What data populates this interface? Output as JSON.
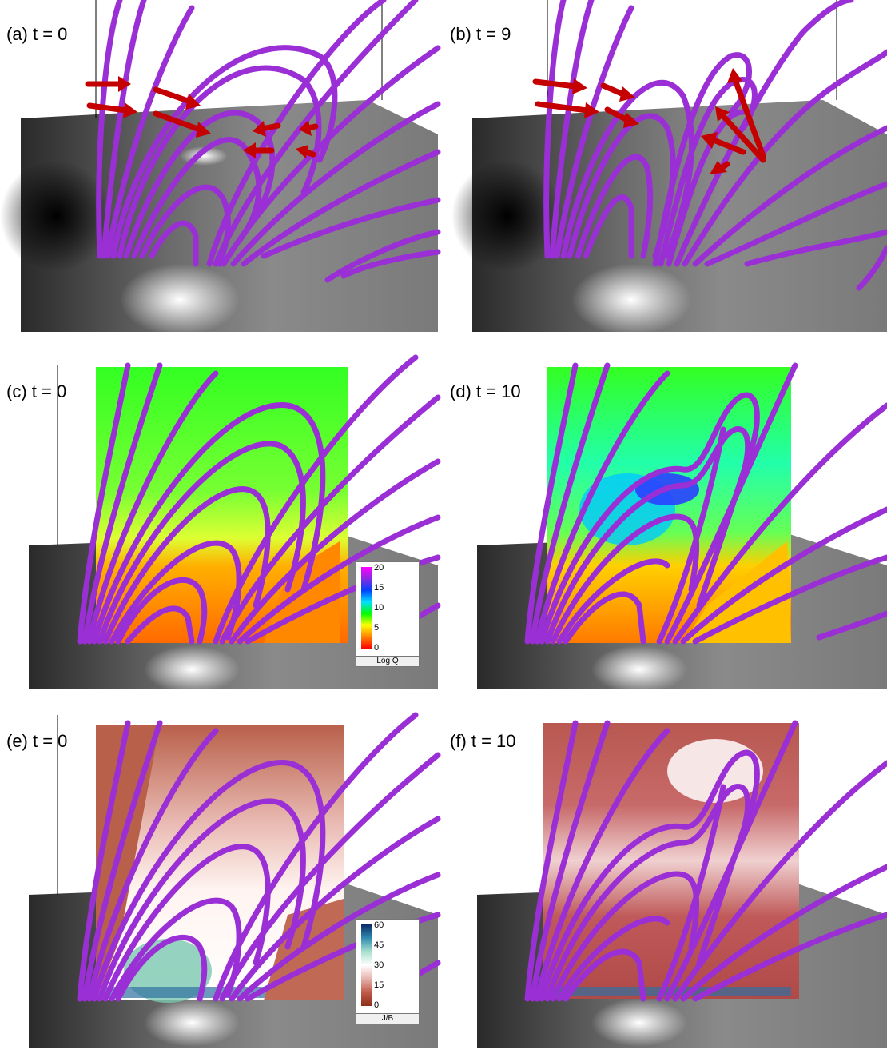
{
  "panels": [
    {
      "label": "(a) t = 0"
    },
    {
      "label": "(b) t = 9"
    },
    {
      "label": "(c) t = 0"
    },
    {
      "label": "(d) t = 10"
    },
    {
      "label": "(e) t = 0"
    },
    {
      "label": "(f) t = 10"
    }
  ],
  "colorbar_q": {
    "title": "Log Q",
    "ticks": [
      "20",
      "15",
      "10",
      "5",
      "0"
    ],
    "colors": [
      "#ff00ff",
      "#8a2be2",
      "#0040ff",
      "#00e0ff",
      "#00ff00",
      "#ffff00",
      "#ff8000",
      "#ff0000"
    ]
  },
  "colorbar_jb": {
    "title": "J/B",
    "ticks": [
      "60",
      "45",
      "30",
      "15",
      "0"
    ],
    "colors": [
      "#0a2a66",
      "#2f8bb0",
      "#a8e0cf",
      "#ffffff",
      "#e6b3ad",
      "#c05a4a",
      "#8b2e18"
    ]
  },
  "colors": {
    "fieldline": "#9a2fd6",
    "arrow": "#c40000"
  }
}
